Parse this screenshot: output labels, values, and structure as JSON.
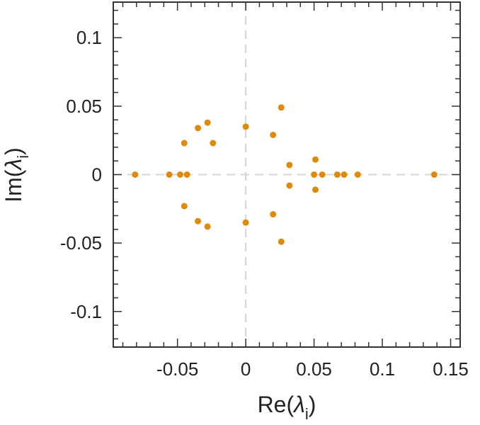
{
  "chart_data": {
    "type": "scatter",
    "xlabel": {
      "base": "Re(",
      "symbol": "λ",
      "sub": "i",
      "close": ")"
    },
    "ylabel": {
      "base": "Im(",
      "symbol": "λ",
      "sub": "i",
      "close": ")"
    },
    "xlim": [
      -0.097,
      0.157
    ],
    "ylim": [
      -0.126,
      0.126
    ],
    "xticks": [
      -0.05,
      0,
      0.05,
      0.1,
      0.15
    ],
    "xtick_labels": [
      "-0.05",
      "0",
      "0.05",
      "0.1",
      "0.15"
    ],
    "yticks": [
      -0.1,
      -0.05,
      0,
      0.05,
      0.1
    ],
    "ytick_labels": [
      "-0.1",
      "-0.05",
      "0",
      "0.05",
      "0.1"
    ],
    "zero_lines": true,
    "grid": false,
    "marker_color": "#e08a0b",
    "points": [
      {
        "x": -0.081,
        "y": 0
      },
      {
        "x": -0.056,
        "y": 0
      },
      {
        "x": -0.048,
        "y": 0
      },
      {
        "x": -0.043,
        "y": 0
      },
      {
        "x": -0.045,
        "y": 0.023
      },
      {
        "x": -0.045,
        "y": -0.023
      },
      {
        "x": -0.035,
        "y": 0.034
      },
      {
        "x": -0.035,
        "y": -0.034
      },
      {
        "x": -0.028,
        "y": 0.038
      },
      {
        "x": -0.028,
        "y": -0.038
      },
      {
        "x": -0.024,
        "y": 0.023
      },
      {
        "x": 0.0,
        "y": 0.035
      },
      {
        "x": 0.0,
        "y": -0.035
      },
      {
        "x": 0.02,
        "y": 0.029
      },
      {
        "x": 0.02,
        "y": -0.029
      },
      {
        "x": 0.026,
        "y": 0.049
      },
      {
        "x": 0.026,
        "y": -0.049
      },
      {
        "x": 0.032,
        "y": 0.007
      },
      {
        "x": 0.032,
        "y": -0.008
      },
      {
        "x": 0.05,
        "y": 0
      },
      {
        "x": 0.051,
        "y": 0.011
      },
      {
        "x": 0.051,
        "y": -0.011
      },
      {
        "x": 0.056,
        "y": 0
      },
      {
        "x": 0.067,
        "y": 0
      },
      {
        "x": 0.072,
        "y": 0
      },
      {
        "x": 0.082,
        "y": 0
      },
      {
        "x": 0.138,
        "y": 0
      }
    ]
  }
}
